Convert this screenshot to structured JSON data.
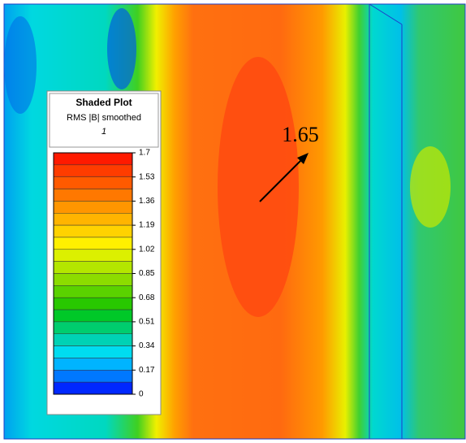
{
  "chart_data": {
    "type": "contour",
    "title": "Shaded Plot",
    "subtitle": "RMS |B| smoothed",
    "label": "1",
    "annotation": "1.65",
    "colorbar": {
      "lim": [
        0,
        1.7
      ],
      "ticks": [
        1.7,
        1.53,
        1.36,
        1.19,
        1.02,
        0.85,
        0.68,
        0.51,
        0.34,
        0.17,
        0
      ],
      "colors": [
        "#ff1a00",
        "#ff3c00",
        "#ff5a00",
        "#ff7800",
        "#ff9600",
        "#ffb400",
        "#ffd200",
        "#fff000",
        "#dcf000",
        "#b4e600",
        "#8cdc00",
        "#5ad200",
        "#28c800",
        "#00c828",
        "#00cd6e",
        "#00d2b4",
        "#00dcf0",
        "#00b4ff",
        "#0078ff",
        "#0028ff"
      ]
    }
  }
}
